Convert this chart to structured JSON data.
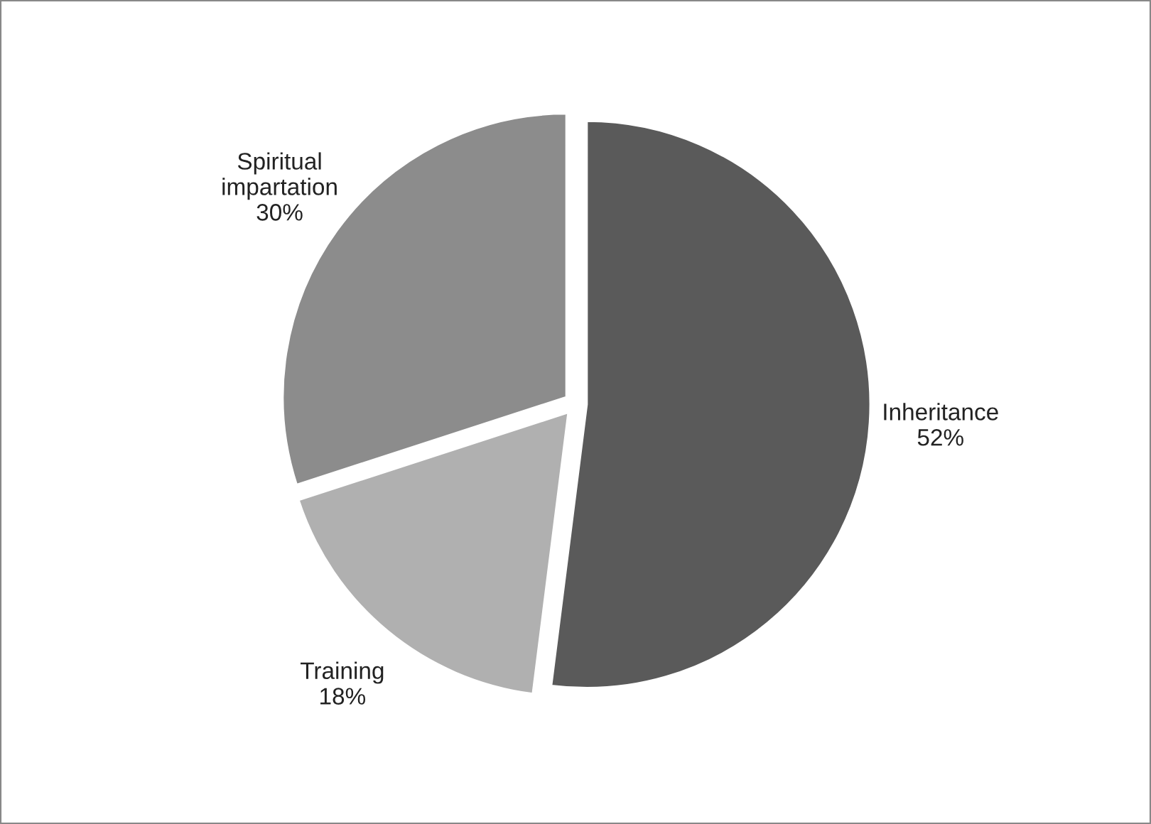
{
  "chart_data": {
    "type": "pie",
    "categories": [
      "Inheritance",
      "Training",
      "Spiritual\nimpartation"
    ],
    "values": [
      52,
      18,
      30
    ],
    "value_labels": [
      "52%",
      "18%",
      "30%"
    ],
    "colors": [
      "#5a5a5a",
      "#b0b0b0",
      "#8c8c8c"
    ]
  }
}
